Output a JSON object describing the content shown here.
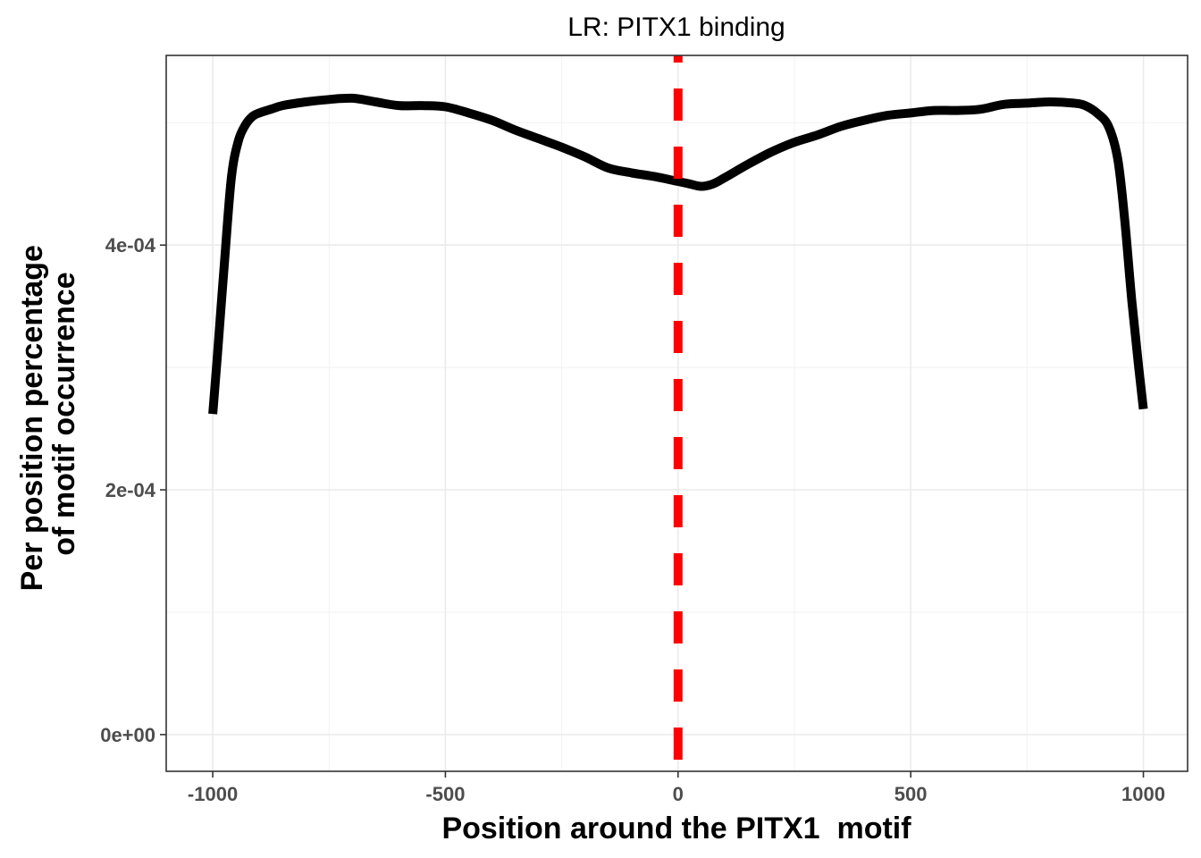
{
  "chart_data": {
    "type": "line",
    "title": "LR: PITX1 binding",
    "xlabel": "Position around the PITX1  motif",
    "ylabel_lines": [
      "Per position percentage",
      "of motif occurrence"
    ],
    "xlim": [
      -1100,
      1095
    ],
    "ylim": [
      -3e-05,
      0.000555
    ],
    "x_ticks": [
      -1000,
      -500,
      0,
      500,
      1000
    ],
    "x_tick_labels": [
      "-1000",
      "-500",
      "0",
      "500",
      "1000"
    ],
    "y_ticks": [
      0,
      0.0002,
      0.0004
    ],
    "y_tick_labels": [
      "0e+00",
      "2e-04",
      "4e-04"
    ],
    "grid": true,
    "reference_line": {
      "x": 0,
      "color": "#ff0000",
      "style": "dashed"
    },
    "line_color": "#000000",
    "series": [
      {
        "x": [
          -1000,
          -990,
          -975,
          -960,
          -945,
          -930,
          -915,
          -900,
          -875,
          -850,
          -800,
          -750,
          -700,
          -650,
          -600,
          -550,
          -500,
          -450,
          -400,
          -350,
          -300,
          -250,
          -200,
          -150,
          -100,
          -50,
          0,
          25,
          50,
          75,
          100,
          150,
          200,
          250,
          300,
          350,
          400,
          450,
          500,
          550,
          600,
          650,
          700,
          750,
          800,
          850,
          875,
          900,
          925,
          945,
          960,
          975,
          990,
          1000
        ],
        "y": [
          0.000262,
          0.00031,
          0.000385,
          0.000455,
          0.000485,
          0.000498,
          0.000505,
          0.000508,
          0.000511,
          0.000514,
          0.000517,
          0.000519,
          0.00052,
          0.000517,
          0.000514,
          0.000514,
          0.000513,
          0.000508,
          0.000502,
          0.000494,
          0.000487,
          0.00048,
          0.000472,
          0.000463,
          0.000459,
          0.000456,
          0.000452,
          0.00045,
          0.000448,
          0.00045,
          0.000455,
          0.000466,
          0.000476,
          0.000484,
          0.00049,
          0.000497,
          0.000502,
          0.000506,
          0.000508,
          0.00051,
          0.00051,
          0.000511,
          0.000515,
          0.000516,
          0.000517,
          0.000516,
          0.000514,
          0.000508,
          0.000497,
          0.00047,
          0.00042,
          0.000355,
          0.0003,
          0.000266
        ]
      }
    ]
  }
}
